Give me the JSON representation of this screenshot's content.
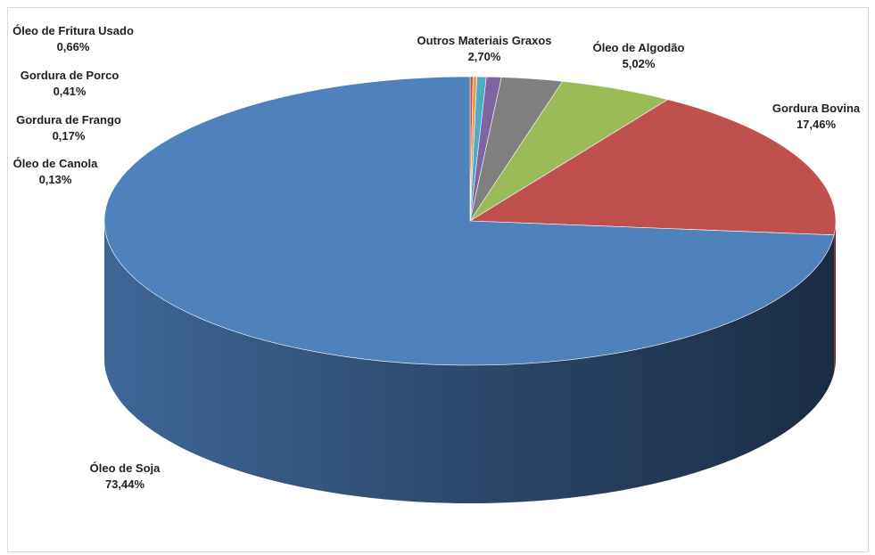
{
  "chart_data": {
    "type": "pie",
    "title": "",
    "style": "3d",
    "legend": "none",
    "slices": [
      {
        "label": "Óleo de Soja",
        "value": 73.44,
        "value_label": "73,44%",
        "color": "#4f81bd"
      },
      {
        "label": "Gordura Bovina",
        "value": 17.46,
        "value_label": "17,46%",
        "color": "#c0504d"
      },
      {
        "label": "Óleo de Algodão",
        "value": 5.02,
        "value_label": "5,02%",
        "color": "#9bbb59"
      },
      {
        "label": "Outros Materiais Graxos",
        "value": 2.7,
        "value_label": "2,70%",
        "color": "#7f7f7f"
      },
      {
        "label": "Óleo de Fritura Usado",
        "value": 0.66,
        "value_label": "0,66%",
        "color": "#8064a2"
      },
      {
        "label": "Gordura de Porco",
        "value": 0.41,
        "value_label": "0,41%",
        "color": "#4bacc6"
      },
      {
        "label": "Gordura de Frango",
        "value": 0.17,
        "value_label": "0,17%",
        "color": "#f79646"
      },
      {
        "label": "Óleo de Canola",
        "value": 0.13,
        "value_label": "0,13%",
        "color": "#c0504d"
      }
    ]
  }
}
